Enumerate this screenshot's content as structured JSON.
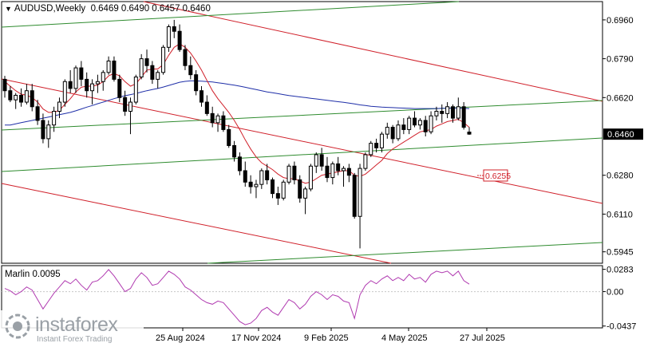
{
  "header": {
    "symbol": "AUDUSD,Weekly",
    "ohlc": "0.6469 0.6490 0.6457 0.6460"
  },
  "oscillator_label": "Marlin 0.0095",
  "logo": {
    "brand": "instaforex",
    "tagline": "Instant Forex Trading"
  },
  "colors": {
    "candle_up": "#ffffff",
    "candle_down": "#000000",
    "ma_fast": "#d0202a",
    "ma_slow": "#1f2fa8",
    "channel_red": "#d0202a",
    "channel_green": "#2e8b2e",
    "oscillator": "#b03ab0",
    "price_tag_bg": "#000000",
    "level_tag": "#d0202a"
  },
  "chart_data": [
    {
      "type": "candlestick",
      "title": "AUDUSD,Weekly",
      "y_ticks": [
        "0.6960",
        "0.6790",
        "0.6620",
        "0.6280",
        "0.6110",
        "0.5945"
      ],
      "ylim": [
        0.5895,
        0.704
      ],
      "x_ticks": [
        "25 Aug 2024",
        "17 Nov 2024",
        "9 Feb 2025",
        "4 May 2025",
        "27 Jul 2025"
      ],
      "current_price": "0.6460",
      "annotations": [
        {
          "label": "0.6255",
          "value": 0.6255
        }
      ],
      "candles": [
        [
          0.67,
          0.6715,
          0.662,
          0.665
        ],
        [
          0.665,
          0.667,
          0.66,
          0.661
        ],
        [
          0.661,
          0.664,
          0.657,
          0.663
        ],
        [
          0.663,
          0.666,
          0.658,
          0.66
        ],
        [
          0.66,
          0.668,
          0.659,
          0.665
        ],
        [
          0.665,
          0.668,
          0.656,
          0.658
        ],
        [
          0.658,
          0.661,
          0.65,
          0.652
        ],
        [
          0.652,
          0.655,
          0.642,
          0.644
        ],
        [
          0.644,
          0.652,
          0.64,
          0.65
        ],
        [
          0.65,
          0.658,
          0.647,
          0.656
        ],
        [
          0.656,
          0.662,
          0.653,
          0.66
        ],
        [
          0.66,
          0.67,
          0.658,
          0.669
        ],
        [
          0.669,
          0.674,
          0.664,
          0.666
        ],
        [
          0.666,
          0.676,
          0.664,
          0.675
        ],
        [
          0.675,
          0.678,
          0.667,
          0.67
        ],
        [
          0.67,
          0.673,
          0.662,
          0.665
        ],
        [
          0.665,
          0.67,
          0.659,
          0.668
        ],
        [
          0.668,
          0.672,
          0.664,
          0.669
        ],
        [
          0.669,
          0.674,
          0.665,
          0.673
        ],
        [
          0.673,
          0.68,
          0.672,
          0.678
        ],
        [
          0.678,
          0.68,
          0.669,
          0.67
        ],
        [
          0.67,
          0.672,
          0.66,
          0.662
        ],
        [
          0.662,
          0.665,
          0.654,
          0.656
        ],
        [
          0.656,
          0.662,
          0.646,
          0.66
        ],
        [
          0.66,
          0.672,
          0.659,
          0.671
        ],
        [
          0.671,
          0.681,
          0.67,
          0.679
        ],
        [
          0.679,
          0.683,
          0.673,
          0.676
        ],
        [
          0.676,
          0.678,
          0.668,
          0.67
        ],
        [
          0.67,
          0.674,
          0.666,
          0.673
        ],
        [
          0.673,
          0.685,
          0.672,
          0.684
        ],
        [
          0.684,
          0.694,
          0.682,
          0.693
        ],
        [
          0.693,
          0.696,
          0.688,
          0.691
        ],
        [
          0.691,
          0.694,
          0.682,
          0.683
        ],
        [
          0.683,
          0.685,
          0.674,
          0.676
        ],
        [
          0.676,
          0.68,
          0.67,
          0.672
        ],
        [
          0.672,
          0.674,
          0.663,
          0.665
        ],
        [
          0.665,
          0.667,
          0.658,
          0.66
        ],
        [
          0.66,
          0.663,
          0.654,
          0.655
        ],
        [
          0.655,
          0.658,
          0.649,
          0.651
        ],
        [
          0.651,
          0.655,
          0.647,
          0.654
        ],
        [
          0.654,
          0.656,
          0.647,
          0.648
        ],
        [
          0.648,
          0.65,
          0.64,
          0.641
        ],
        [
          0.641,
          0.643,
          0.634,
          0.636
        ],
        [
          0.636,
          0.638,
          0.628,
          0.63
        ],
        [
          0.63,
          0.634,
          0.623,
          0.625
        ],
        [
          0.625,
          0.628,
          0.62,
          0.623
        ],
        [
          0.623,
          0.626,
          0.618,
          0.624
        ],
        [
          0.624,
          0.631,
          0.622,
          0.63
        ],
        [
          0.63,
          0.633,
          0.624,
          0.626
        ],
        [
          0.626,
          0.627,
          0.618,
          0.62
        ],
        [
          0.62,
          0.623,
          0.615,
          0.618
        ],
        [
          0.618,
          0.626,
          0.617,
          0.625
        ],
        [
          0.625,
          0.633,
          0.624,
          0.632
        ],
        [
          0.632,
          0.634,
          0.624,
          0.626
        ],
        [
          0.626,
          0.628,
          0.616,
          0.618
        ],
        [
          0.618,
          0.623,
          0.611,
          0.622
        ],
        [
          0.622,
          0.633,
          0.621,
          0.632
        ],
        [
          0.632,
          0.638,
          0.629,
          0.637
        ],
        [
          0.637,
          0.64,
          0.63,
          0.632
        ],
        [
          0.632,
          0.636,
          0.625,
          0.627
        ],
        [
          0.627,
          0.634,
          0.624,
          0.633
        ],
        [
          0.633,
          0.636,
          0.628,
          0.63
        ],
        [
          0.63,
          0.632,
          0.623,
          0.631
        ],
        [
          0.631,
          0.633,
          0.625,
          0.628
        ],
        [
          0.628,
          0.629,
          0.609,
          0.61
        ],
        [
          0.61,
          0.633,
          0.596,
          0.631
        ],
        [
          0.631,
          0.638,
          0.63,
          0.637
        ],
        [
          0.637,
          0.643,
          0.636,
          0.642
        ],
        [
          0.642,
          0.644,
          0.638,
          0.64
        ],
        [
          0.64,
          0.647,
          0.638,
          0.646
        ],
        [
          0.646,
          0.651,
          0.644,
          0.649
        ],
        [
          0.649,
          0.65,
          0.642,
          0.644
        ],
        [
          0.644,
          0.652,
          0.643,
          0.65
        ],
        [
          0.65,
          0.653,
          0.646,
          0.648
        ],
        [
          0.648,
          0.654,
          0.646,
          0.653
        ],
        [
          0.653,
          0.656,
          0.649,
          0.65
        ],
        [
          0.65,
          0.653,
          0.648,
          0.652
        ],
        [
          0.652,
          0.654,
          0.645,
          0.647
        ],
        [
          0.647,
          0.656,
          0.646,
          0.654
        ],
        [
          0.654,
          0.658,
          0.652,
          0.656
        ],
        [
          0.656,
          0.659,
          0.651,
          0.655
        ],
        [
          0.655,
          0.66,
          0.653,
          0.658
        ],
        [
          0.658,
          0.659,
          0.651,
          0.653
        ],
        [
          0.653,
          0.662,
          0.652,
          0.658
        ],
        [
          0.658,
          0.66,
          0.648,
          0.649
        ],
        [
          0.6469,
          0.649,
          0.6457,
          0.646
        ]
      ],
      "ma_fast": [
        0.669,
        0.667,
        0.665,
        0.6635,
        0.663,
        0.662,
        0.66,
        0.657,
        0.6555,
        0.6555,
        0.6565,
        0.659,
        0.6615,
        0.6645,
        0.6665,
        0.667,
        0.667,
        0.6675,
        0.669,
        0.6715,
        0.6725,
        0.6715,
        0.669,
        0.667,
        0.668,
        0.671,
        0.674,
        0.6745,
        0.6745,
        0.6765,
        0.6805,
        0.684,
        0.6855,
        0.684,
        0.6815,
        0.678,
        0.674,
        0.6695,
        0.665,
        0.6615,
        0.6585,
        0.6555,
        0.652,
        0.648,
        0.6435,
        0.6395,
        0.636,
        0.6335,
        0.632,
        0.6305,
        0.6285,
        0.627,
        0.6265,
        0.6265,
        0.6255,
        0.6245,
        0.625,
        0.6265,
        0.628,
        0.6285,
        0.629,
        0.6295,
        0.63,
        0.63,
        0.628,
        0.6275,
        0.6285,
        0.6305,
        0.6325,
        0.6345,
        0.6375,
        0.6395,
        0.641,
        0.6425,
        0.644,
        0.6455,
        0.647,
        0.6475,
        0.648,
        0.6495,
        0.6505,
        0.6515,
        0.652,
        0.6525,
        0.651,
        0.649
      ],
      "ma_slow": [
        0.65,
        0.65,
        0.6505,
        0.651,
        0.6515,
        0.652,
        0.6525,
        0.653,
        0.6535,
        0.654,
        0.6545,
        0.655,
        0.6555,
        0.6562,
        0.657,
        0.6578,
        0.6585,
        0.6593,
        0.66,
        0.6608,
        0.6615,
        0.6622,
        0.6628,
        0.6633,
        0.6638,
        0.6644,
        0.665,
        0.6655,
        0.666,
        0.6666,
        0.6673,
        0.668,
        0.6687,
        0.6691,
        0.6693,
        0.6693,
        0.6692,
        0.669,
        0.6688,
        0.6685,
        0.6682,
        0.6678,
        0.6674,
        0.667,
        0.6665,
        0.666,
        0.6655,
        0.665,
        0.6645,
        0.6641,
        0.6637,
        0.6633,
        0.6629,
        0.6626,
        0.6623,
        0.662,
        0.6617,
        0.6614,
        0.6611,
        0.6608,
        0.6605,
        0.6602,
        0.6599,
        0.6596,
        0.6592,
        0.6588,
        0.6585,
        0.6582,
        0.658,
        0.6578,
        0.6577,
        0.6576,
        0.6575,
        0.6574,
        0.6573,
        0.6572,
        0.6572,
        0.6572,
        0.6572,
        0.6572,
        0.6573,
        0.6573,
        0.6574,
        0.6574,
        0.6573,
        0.6572
      ]
    },
    {
      "type": "line",
      "title": "Marlin 0.0095",
      "y_ticks": [
        "0.0283",
        "0.00",
        "-0.0437"
      ],
      "ylim": [
        -0.046,
        0.033
      ],
      "values": [
        0.004,
        0.001,
        -0.004,
        0.0,
        0.006,
        0.002,
        -0.01,
        -0.022,
        -0.012,
        -0.002,
        0.006,
        0.014,
        0.01,
        0.016,
        0.008,
        0.002,
        0.012,
        0.014,
        0.02,
        0.028,
        0.02,
        0.01,
        0.0,
        0.004,
        0.016,
        0.024,
        0.018,
        0.008,
        0.01,
        0.018,
        0.026,
        0.022,
        0.016,
        0.006,
        0.002,
        -0.004,
        -0.01,
        -0.014,
        -0.016,
        -0.012,
        -0.014,
        -0.022,
        -0.03,
        -0.038,
        -0.042,
        -0.04,
        -0.034,
        -0.024,
        -0.02,
        -0.026,
        -0.03,
        -0.02,
        -0.01,
        -0.014,
        -0.022,
        -0.016,
        -0.006,
        0.0,
        -0.004,
        -0.01,
        -0.004,
        -0.006,
        -0.012,
        -0.014,
        -0.034,
        -0.004,
        0.008,
        0.014,
        0.01,
        0.016,
        0.02,
        0.014,
        0.018,
        0.014,
        0.022,
        0.016,
        0.018,
        0.012,
        0.022,
        0.026,
        0.024,
        0.026,
        0.02,
        0.026,
        0.014,
        0.0095
      ]
    }
  ]
}
